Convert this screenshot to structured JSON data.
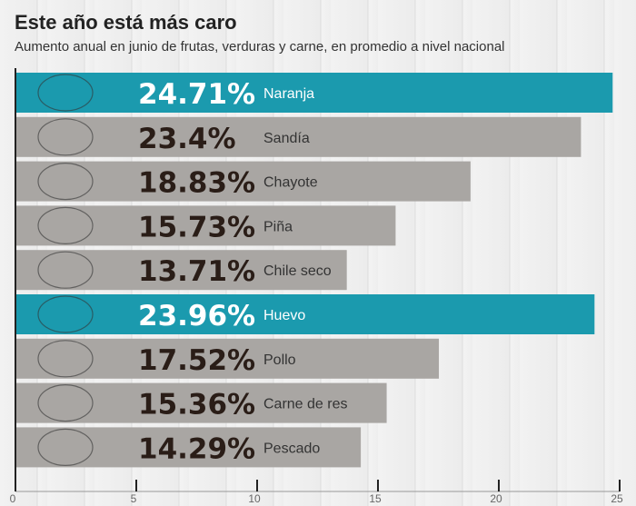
{
  "title": "Este año está más caro",
  "subtitle": "Aumento anual en junio de frutas, verduras y carne, en promedio a nivel nacional",
  "colors": {
    "highlight": "#1b9aae",
    "default": "#a9a6a3",
    "dark_text": "#2a1d17",
    "light_text": "#ffffff"
  },
  "chart_data": {
    "type": "bar",
    "orientation": "horizontal",
    "title": "Este año está más caro",
    "subtitle": "Aumento anual en junio de frutas, verduras y carne, en promedio a nivel nacional",
    "categories": [
      "Naranja",
      "Sandía",
      "Chayote",
      "Piña",
      "Chile seco",
      "Huevo",
      "Pollo",
      "Carne de res",
      "Pescado"
    ],
    "values": [
      24.71,
      23.4,
      18.83,
      15.73,
      13.71,
      23.96,
      17.52,
      15.36,
      14.29
    ],
    "labels": [
      "24.71%",
      "23.4%",
      "18.83%",
      "15.73%",
      "13.71%",
      "23.96%",
      "17.52%",
      "15.36%",
      "14.29%"
    ],
    "highlighted": [
      true,
      false,
      false,
      false,
      false,
      true,
      false,
      false,
      false
    ],
    "xlim": [
      0,
      25
    ],
    "xticks": [
      "0",
      "5",
      "10",
      "15",
      "20",
      "25"
    ],
    "grid": false,
    "xlabel": "",
    "ylabel": ""
  }
}
